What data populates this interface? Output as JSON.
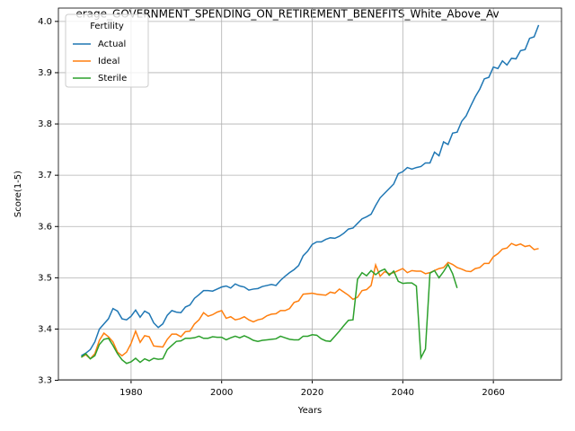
{
  "chart_data": {
    "type": "line",
    "title": "erage_GOVERNMENT_SPENDING_ON_RETIREMENT_BENEFITS_White_Above_Av",
    "xlabel": "Years",
    "ylabel": "Score(1-5)",
    "x": [
      1969,
      1970,
      1971,
      1972,
      1973,
      1974,
      1975,
      1976,
      1977,
      1978,
      1979,
      1980,
      1981,
      1982,
      1983,
      1984,
      1985,
      1986,
      1987,
      1988,
      1989,
      1990,
      1991,
      1992,
      1993,
      1994,
      1995,
      1996,
      1997,
      1998,
      1999,
      2000,
      2001,
      2002,
      2003,
      2004,
      2005,
      2006,
      2007,
      2008,
      2009,
      2010,
      2011,
      2012,
      2013,
      2014,
      2015,
      2016,
      2017,
      2018,
      2019,
      2020,
      2021,
      2022,
      2023,
      2024,
      2025,
      2026,
      2027,
      2028,
      2029,
      2030,
      2031,
      2032,
      2033,
      2034,
      2035,
      2036,
      2037,
      2038,
      2039,
      2040,
      2041,
      2042,
      2043,
      2044,
      2045,
      2046,
      2047,
      2048,
      2049,
      2050,
      2051,
      2052,
      2053,
      2054,
      2055,
      2056,
      2057,
      2058,
      2059,
      2060,
      2061,
      2062,
      2063,
      2064,
      2065,
      2066,
      2067,
      2068,
      2069,
      2070
    ],
    "series": [
      {
        "name": "Actual",
        "color": "#1f77b4",
        "values": [
          3.348,
          3.353,
          3.36,
          3.375,
          3.4,
          3.41,
          3.42,
          3.44,
          3.435,
          3.42,
          3.418,
          3.425,
          3.437,
          3.423,
          3.435,
          3.43,
          3.412,
          3.403,
          3.41,
          3.427,
          3.436,
          3.433,
          3.432,
          3.443,
          3.447,
          3.46,
          3.467,
          3.475,
          3.475,
          3.474,
          3.478,
          3.482,
          3.484,
          3.48,
          3.488,
          3.484,
          3.482,
          3.476,
          3.478,
          3.479,
          3.483,
          3.485,
          3.487,
          3.485,
          3.495,
          3.503,
          3.51,
          3.516,
          3.524,
          3.543,
          3.552,
          3.565,
          3.57,
          3.57,
          3.575,
          3.578,
          3.577,
          3.581,
          3.587,
          3.595,
          3.597,
          3.606,
          3.615,
          3.619,
          3.624,
          3.641,
          3.656,
          3.665,
          3.674,
          3.683,
          3.703,
          3.707,
          3.715,
          3.712,
          3.715,
          3.717,
          3.724,
          3.724,
          3.745,
          3.738,
          3.765,
          3.76,
          3.782,
          3.784,
          3.805,
          3.816,
          3.835,
          3.853,
          3.868,
          3.888,
          3.891,
          3.911,
          3.908,
          3.923,
          3.915,
          3.928,
          3.927,
          3.943,
          3.945,
          3.967,
          3.97,
          3.993
        ]
      },
      {
        "name": "Ideal",
        "color": "#ff7f0e",
        "values": [
          3.345,
          3.35,
          3.342,
          3.352,
          3.378,
          3.392,
          3.385,
          3.375,
          3.355,
          3.348,
          3.355,
          3.372,
          3.396,
          3.374,
          3.387,
          3.385,
          3.367,
          3.366,
          3.365,
          3.38,
          3.39,
          3.39,
          3.385,
          3.395,
          3.396,
          3.41,
          3.418,
          3.432,
          3.425,
          3.428,
          3.433,
          3.436,
          3.421,
          3.424,
          3.418,
          3.42,
          3.424,
          3.418,
          3.414,
          3.418,
          3.42,
          3.426,
          3.429,
          3.43,
          3.436,
          3.436,
          3.44,
          3.452,
          3.455,
          3.468,
          3.469,
          3.47,
          3.468,
          3.467,
          3.466,
          3.472,
          3.47,
          3.478,
          3.472,
          3.466,
          3.458,
          3.462,
          3.475,
          3.477,
          3.485,
          3.525,
          3.503,
          3.512,
          3.508,
          3.51,
          3.514,
          3.518,
          3.51,
          3.514,
          3.513,
          3.513,
          3.508,
          3.51,
          3.514,
          3.518,
          3.52,
          3.53,
          3.526,
          3.52,
          3.517,
          3.513,
          3.512,
          3.518,
          3.52,
          3.528,
          3.528,
          3.541,
          3.547,
          3.556,
          3.558,
          3.567,
          3.563,
          3.566,
          3.561,
          3.563,
          3.555,
          3.557
        ]
      },
      {
        "name": "Sterile",
        "color": "#2ca02c",
        "values": [
          3.345,
          3.352,
          3.342,
          3.348,
          3.37,
          3.38,
          3.382,
          3.368,
          3.352,
          3.34,
          3.333,
          3.336,
          3.343,
          3.335,
          3.342,
          3.338,
          3.343,
          3.341,
          3.342,
          3.36,
          3.368,
          3.376,
          3.377,
          3.382,
          3.382,
          3.383,
          3.386,
          3.382,
          3.382,
          3.385,
          3.384,
          3.384,
          3.379,
          3.383,
          3.386,
          3.383,
          3.387,
          3.383,
          3.378,
          3.376,
          3.378,
          3.379,
          3.38,
          3.381,
          3.386,
          3.383,
          3.38,
          3.379,
          3.379,
          3.386,
          3.386,
          3.389,
          3.388,
          3.381,
          3.377,
          3.376,
          3.386,
          3.396,
          3.407,
          3.417,
          3.418,
          3.497,
          3.51,
          3.504,
          3.514,
          3.506,
          3.513,
          3.517,
          3.505,
          3.513,
          3.493,
          3.489,
          3.49,
          3.49,
          3.484,
          3.344,
          3.361,
          3.509,
          3.514,
          3.5,
          3.512,
          3.526,
          3.508,
          3.48,
          null,
          null,
          null,
          null,
          null,
          null,
          null,
          null,
          null,
          null,
          null,
          null,
          null,
          null,
          null,
          null,
          null,
          null
        ]
      }
    ],
    "xlim": [
      1963.95,
      2075.05
    ],
    "xticks": [
      1980,
      2000,
      2020,
      2040,
      2060
    ],
    "ylim": [
      3.301,
      4.026
    ],
    "yticks": [
      3.3,
      3.4,
      3.5,
      3.6,
      3.7,
      3.8,
      3.9,
      {
        "value": 4,
        "label": "4.0"
      }
    ],
    "grid": true,
    "legend_title": "Fertility",
    "legend_loc": "upper left"
  }
}
